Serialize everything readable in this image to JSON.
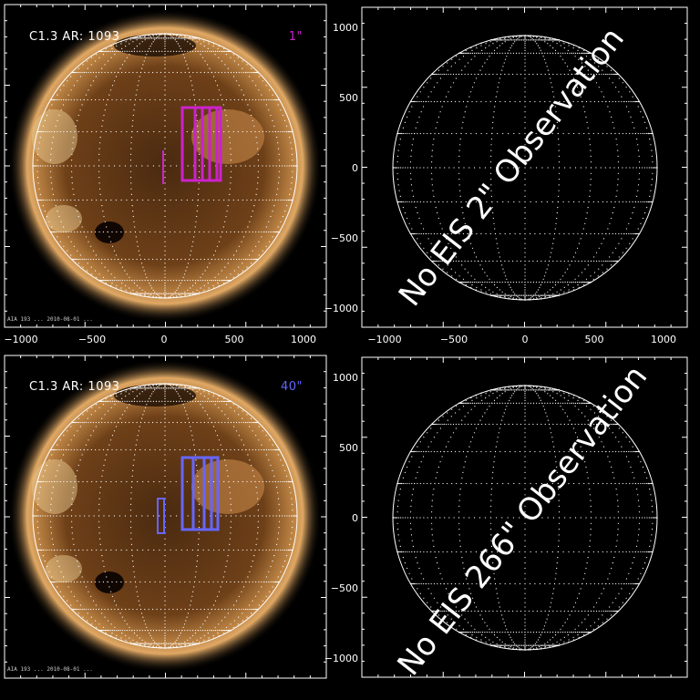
{
  "panels": {
    "tl": {
      "header_left": "C1.3 AR: 1093",
      "header_right": "1\"",
      "header_right_color": "#cc22cc",
      "box_color": "#cc22cc",
      "stamp": "AIA 193 ... 2010-08-01 ..."
    },
    "tr": {
      "message": "No EIS 2\" Observation"
    },
    "bl": {
      "header_left": "C1.3 AR: 1093",
      "header_right": "40\"",
      "header_right_color": "#6666ff",
      "box_color": "#6666ff",
      "stamp": "AIA 193 ... 2010-08-01 ..."
    },
    "br": {
      "message": "No EIS 266\" Observation"
    }
  },
  "axes": {
    "x_ticks": [
      "−1000",
      "−500",
      "0",
      "500",
      "1000"
    ],
    "y_ticks": [
      "1000",
      "500",
      "0",
      "−500",
      "−1000"
    ]
  },
  "colors": {
    "background": "#000000",
    "sun_core": "#a8682a",
    "sun_corona": "#d9a060",
    "limb": "#ffffff"
  }
}
